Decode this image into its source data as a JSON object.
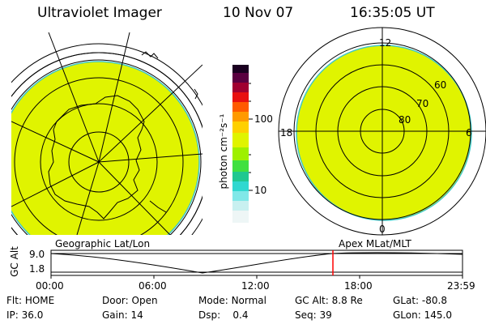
{
  "header": {
    "instrument": "Ultraviolet Imager",
    "date": "10 Nov 07",
    "time": "16:35:05 UT"
  },
  "colorbar": {
    "unit_label": "photon cm⁻²s⁻¹",
    "tick_high": "100",
    "tick_low": "10"
  },
  "geo_map": {
    "caption": "Geographic Lat/Lon"
  },
  "polar_map": {
    "caption": "Apex MLat/MLT",
    "mlt_12": "12",
    "mlt_18": "18",
    "mlt_6": "6",
    "mlt_0": "0",
    "lat_60": "60",
    "lat_70": "70",
    "lat_80": "80"
  },
  "altitude_plot": {
    "ylabel": "GC Alt",
    "y_high": "9.0",
    "y_low": "1.8",
    "x_ticks": [
      "00:00",
      "06:00",
      "12:00",
      "18:00",
      "23:59"
    ],
    "marker_time": "16:35:05",
    "marker_color": "#ff0000"
  },
  "status": {
    "flt_label": "Flt:",
    "flt_value": "HOME",
    "door_label": "Door:",
    "door_value": "Open",
    "mode_label": "Mode:",
    "mode_value": "Normal",
    "gcalt_label": "GC Alt:",
    "gcalt_value": "8.8 Re",
    "glat_label": "GLat:",
    "glat_value": "-80.8",
    "ip_label": "IP:",
    "ip_value": "36.0",
    "gain_label": "Gain:",
    "gain_value": "14",
    "dsp_label": "Dsp:",
    "dsp_value": "0.4",
    "seq_label": "Seq:",
    "seq_value": "39",
    "glon_label": "GLon:",
    "glon_value": "145.0"
  },
  "colors": {
    "image_fill": "#e0f400",
    "edge": "#40c8c8"
  }
}
